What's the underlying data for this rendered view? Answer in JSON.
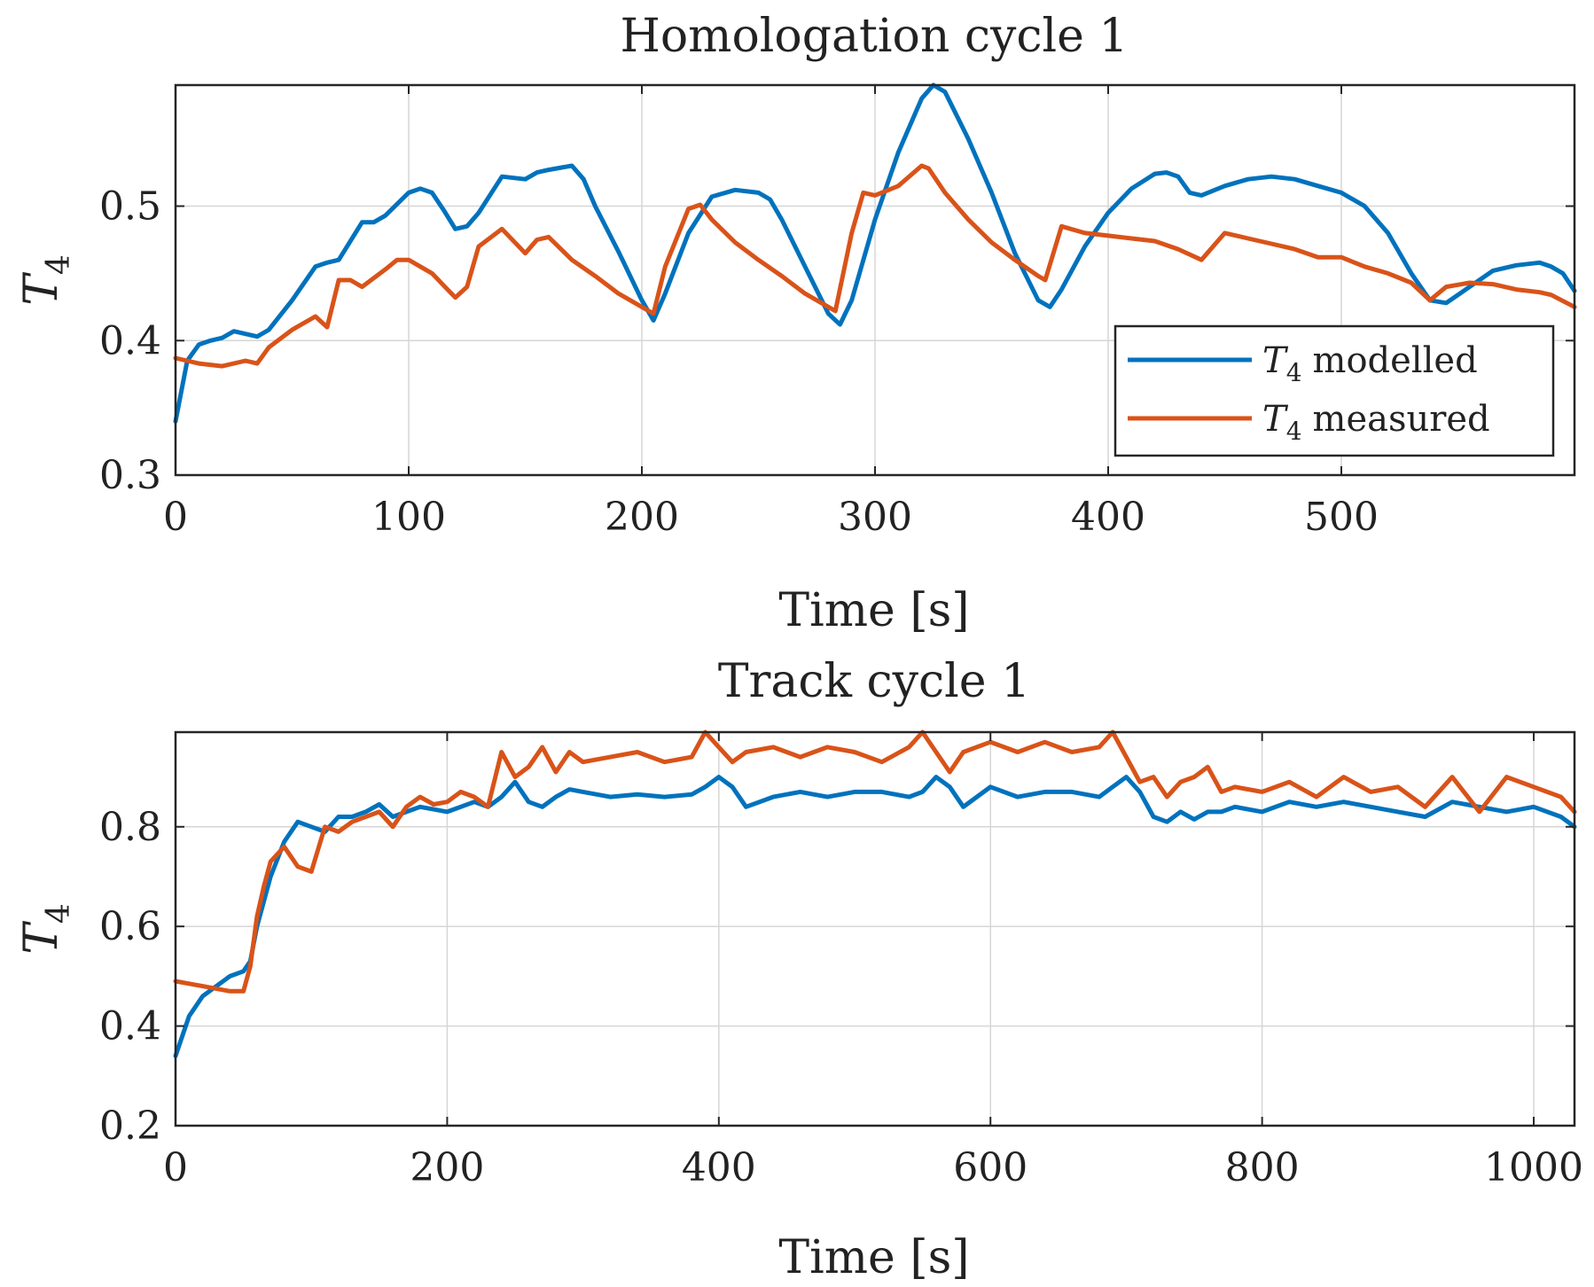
{
  "colors": {
    "modelled": "#0072BD",
    "measured": "#D95319",
    "axis": "#262626",
    "grid": "#d6d6d6"
  },
  "chart_data": [
    {
      "type": "line",
      "title": "Homologation cycle 1",
      "xlabel": "Time [s]",
      "ylabel_main": "T",
      "ylabel_sub": "4",
      "xlim": [
        0,
        600
      ],
      "ylim": [
        0.3,
        0.59
      ],
      "xticks": [
        0,
        100,
        200,
        300,
        400,
        500
      ],
      "xtick_labels": [
        "0",
        "100",
        "200",
        "300",
        "400",
        "500"
      ],
      "yticks": [
        0.3,
        0.4,
        0.5
      ],
      "ytick_labels": [
        "0.3",
        "0.4",
        "0.5"
      ],
      "grid": true,
      "legend": {
        "location": "bottom-right",
        "entries": [
          {
            "main": "T",
            "sub": "4",
            "text": "modelled"
          },
          {
            "main": "T",
            "sub": "4",
            "text": "measured"
          }
        ]
      },
      "series": [
        {
          "name": "T4 modelled",
          "x": [
            0,
            5,
            10,
            15,
            20,
            25,
            30,
            35,
            40,
            50,
            60,
            65,
            70,
            80,
            85,
            90,
            100,
            105,
            110,
            115,
            120,
            125,
            130,
            140,
            150,
            155,
            160,
            170,
            175,
            180,
            190,
            200,
            205,
            210,
            220,
            230,
            240,
            250,
            255,
            260,
            270,
            280,
            285,
            290,
            300,
            310,
            320,
            325,
            330,
            340,
            350,
            360,
            370,
            375,
            380,
            390,
            400,
            410,
            420,
            425,
            430,
            435,
            440,
            450,
            460,
            470,
            480,
            490,
            500,
            510,
            520,
            530,
            538,
            545,
            555,
            565,
            575,
            585,
            590,
            595,
            600
          ],
          "y": [
            0.34,
            0.385,
            0.397,
            0.4,
            0.402,
            0.407,
            0.405,
            0.403,
            0.408,
            0.43,
            0.455,
            0.458,
            0.46,
            0.488,
            0.488,
            0.493,
            0.51,
            0.513,
            0.51,
            0.497,
            0.483,
            0.485,
            0.495,
            0.522,
            0.52,
            0.525,
            0.527,
            0.53,
            0.52,
            0.5,
            0.466,
            0.43,
            0.415,
            0.435,
            0.48,
            0.507,
            0.512,
            0.51,
            0.505,
            0.49,
            0.455,
            0.42,
            0.412,
            0.43,
            0.49,
            0.54,
            0.58,
            0.59,
            0.585,
            0.55,
            0.51,
            0.465,
            0.43,
            0.425,
            0.438,
            0.47,
            0.495,
            0.513,
            0.524,
            0.525,
            0.522,
            0.51,
            0.508,
            0.515,
            0.52,
            0.522,
            0.52,
            0.515,
            0.51,
            0.5,
            0.48,
            0.45,
            0.43,
            0.428,
            0.44,
            0.452,
            0.456,
            0.458,
            0.455,
            0.45,
            0.437
          ]
        },
        {
          "name": "T4 measured",
          "x": [
            0,
            10,
            20,
            30,
            35,
            40,
            50,
            60,
            65,
            70,
            75,
            80,
            90,
            95,
            100,
            110,
            120,
            125,
            130,
            140,
            150,
            155,
            160,
            170,
            180,
            190,
            200,
            205,
            210,
            220,
            225,
            230,
            240,
            250,
            260,
            270,
            280,
            283,
            290,
            295,
            300,
            310,
            320,
            323,
            330,
            340,
            350,
            360,
            370,
            373,
            380,
            390,
            400,
            410,
            420,
            430,
            440,
            450,
            460,
            470,
            480,
            490,
            500,
            510,
            520,
            530,
            538,
            545,
            555,
            565,
            575,
            585,
            590,
            600
          ],
          "y": [
            0.387,
            0.383,
            0.381,
            0.385,
            0.383,
            0.395,
            0.408,
            0.418,
            0.41,
            0.445,
            0.445,
            0.44,
            0.453,
            0.46,
            0.46,
            0.45,
            0.432,
            0.44,
            0.47,
            0.483,
            0.465,
            0.475,
            0.477,
            0.46,
            0.448,
            0.435,
            0.425,
            0.42,
            0.455,
            0.498,
            0.501,
            0.49,
            0.473,
            0.46,
            0.448,
            0.435,
            0.425,
            0.422,
            0.48,
            0.51,
            0.508,
            0.515,
            0.53,
            0.528,
            0.51,
            0.49,
            0.473,
            0.46,
            0.448,
            0.445,
            0.485,
            0.48,
            0.478,
            0.476,
            0.474,
            0.468,
            0.46,
            0.48,
            0.476,
            0.472,
            0.468,
            0.462,
            0.462,
            0.455,
            0.45,
            0.443,
            0.43,
            0.44,
            0.443,
            0.442,
            0.438,
            0.436,
            0.434,
            0.425
          ]
        }
      ]
    },
    {
      "type": "line",
      "title": "Track cycle 1",
      "xlabel": "Time [s]",
      "ylabel_main": "T",
      "ylabel_sub": "4",
      "xlim": [
        0,
        1030
      ],
      "ylim": [
        0.2,
        0.99
      ],
      "xticks": [
        0,
        200,
        400,
        600,
        800,
        1000
      ],
      "xtick_labels": [
        "0",
        "200",
        "400",
        "600",
        "800",
        "1000"
      ],
      "yticks": [
        0.2,
        0.4,
        0.6,
        0.8
      ],
      "ytick_labels": [
        "0.2",
        "0.4",
        "0.6",
        "0.8"
      ],
      "grid": true,
      "series": [
        {
          "name": "T4 modelled",
          "x": [
            0,
            10,
            20,
            30,
            40,
            50,
            55,
            60,
            70,
            80,
            90,
            100,
            110,
            120,
            130,
            140,
            150,
            160,
            170,
            180,
            190,
            200,
            210,
            220,
            230,
            240,
            250,
            260,
            270,
            280,
            290,
            300,
            320,
            340,
            360,
            380,
            390,
            400,
            410,
            420,
            440,
            460,
            480,
            500,
            520,
            540,
            550,
            560,
            570,
            580,
            600,
            620,
            640,
            660,
            680,
            690,
            700,
            710,
            720,
            730,
            740,
            750,
            760,
            770,
            780,
            800,
            820,
            840,
            860,
            880,
            900,
            920,
            940,
            960,
            980,
            1000,
            1020,
            1030
          ],
          "y": [
            0.34,
            0.42,
            0.46,
            0.48,
            0.5,
            0.51,
            0.53,
            0.6,
            0.7,
            0.77,
            0.81,
            0.8,
            0.79,
            0.82,
            0.82,
            0.83,
            0.845,
            0.82,
            0.83,
            0.84,
            0.835,
            0.83,
            0.84,
            0.85,
            0.84,
            0.86,
            0.89,
            0.85,
            0.84,
            0.86,
            0.875,
            0.87,
            0.86,
            0.865,
            0.86,
            0.865,
            0.88,
            0.9,
            0.88,
            0.84,
            0.86,
            0.87,
            0.86,
            0.87,
            0.87,
            0.86,
            0.87,
            0.9,
            0.88,
            0.84,
            0.88,
            0.86,
            0.87,
            0.87,
            0.86,
            0.88,
            0.9,
            0.87,
            0.82,
            0.81,
            0.83,
            0.815,
            0.83,
            0.83,
            0.84,
            0.83,
            0.85,
            0.84,
            0.85,
            0.84,
            0.83,
            0.82,
            0.85,
            0.84,
            0.83,
            0.84,
            0.82,
            0.8
          ]
        },
        {
          "name": "T4 measured",
          "x": [
            0,
            10,
            20,
            30,
            40,
            50,
            55,
            60,
            65,
            70,
            80,
            90,
            100,
            110,
            120,
            130,
            140,
            150,
            160,
            170,
            180,
            190,
            200,
            210,
            220,
            230,
            240,
            250,
            260,
            270,
            280,
            290,
            300,
            320,
            340,
            360,
            380,
            390,
            400,
            410,
            420,
            440,
            460,
            480,
            500,
            520,
            540,
            550,
            560,
            570,
            580,
            600,
            620,
            640,
            660,
            680,
            690,
            700,
            710,
            720,
            730,
            740,
            750,
            760,
            770,
            780,
            800,
            820,
            840,
            860,
            880,
            900,
            920,
            940,
            960,
            980,
            1000,
            1020,
            1030
          ],
          "y": [
            0.49,
            0.485,
            0.48,
            0.475,
            0.47,
            0.47,
            0.52,
            0.62,
            0.68,
            0.73,
            0.76,
            0.72,
            0.71,
            0.8,
            0.79,
            0.81,
            0.82,
            0.83,
            0.8,
            0.84,
            0.86,
            0.845,
            0.85,
            0.87,
            0.86,
            0.84,
            0.95,
            0.9,
            0.92,
            0.96,
            0.91,
            0.95,
            0.93,
            0.94,
            0.95,
            0.93,
            0.94,
            0.99,
            0.96,
            0.93,
            0.95,
            0.96,
            0.94,
            0.96,
            0.95,
            0.93,
            0.96,
            0.99,
            0.95,
            0.91,
            0.95,
            0.97,
            0.95,
            0.97,
            0.95,
            0.96,
            0.99,
            0.94,
            0.89,
            0.9,
            0.86,
            0.89,
            0.9,
            0.92,
            0.87,
            0.88,
            0.87,
            0.89,
            0.86,
            0.9,
            0.87,
            0.88,
            0.84,
            0.9,
            0.83,
            0.9,
            0.88,
            0.86,
            0.83
          ]
        }
      ]
    }
  ]
}
